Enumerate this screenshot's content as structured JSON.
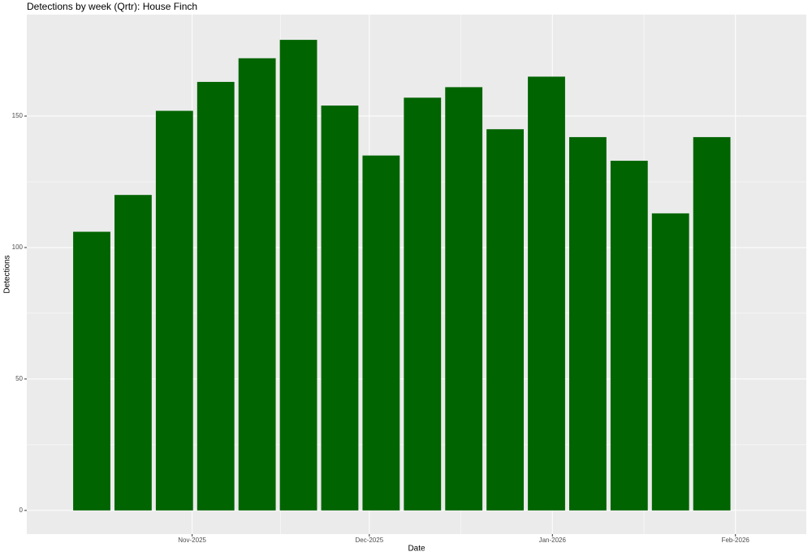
{
  "chart_data": {
    "type": "bar",
    "title": "Detections by week (Qrtr): House Finch",
    "x_label": "Date",
    "y_label": "Detections",
    "x": [
      "2025-10-15",
      "2025-10-22",
      "2025-10-29",
      "2025-11-05",
      "2025-11-12",
      "2025-11-19",
      "2025-11-26",
      "2025-12-03",
      "2025-12-10",
      "2025-12-17",
      "2025-12-24",
      "2025-12-31",
      "2026-01-07",
      "2026-01-14",
      "2026-01-21",
      "2026-01-28"
    ],
    "values": [
      106,
      120,
      152,
      163,
      172,
      179,
      154,
      135,
      157,
      161,
      145,
      165,
      142,
      133,
      113,
      142
    ],
    "color": "#006400",
    "xlim": [
      "2025-10-04",
      "2026-02-13"
    ],
    "xticks": [
      {
        "value": "2025-11-01",
        "label": "Nov-2025"
      },
      {
        "value": "2025-12-01",
        "label": "Dec-2025"
      },
      {
        "value": "2026-01-01",
        "label": "Jan-2026"
      },
      {
        "value": "2026-02-01",
        "label": "Feb-2026"
      }
    ],
    "ylim": [
      -9,
      188.6
    ],
    "yticks": [
      0,
      50,
      100,
      150
    ],
    "grid": true
  }
}
